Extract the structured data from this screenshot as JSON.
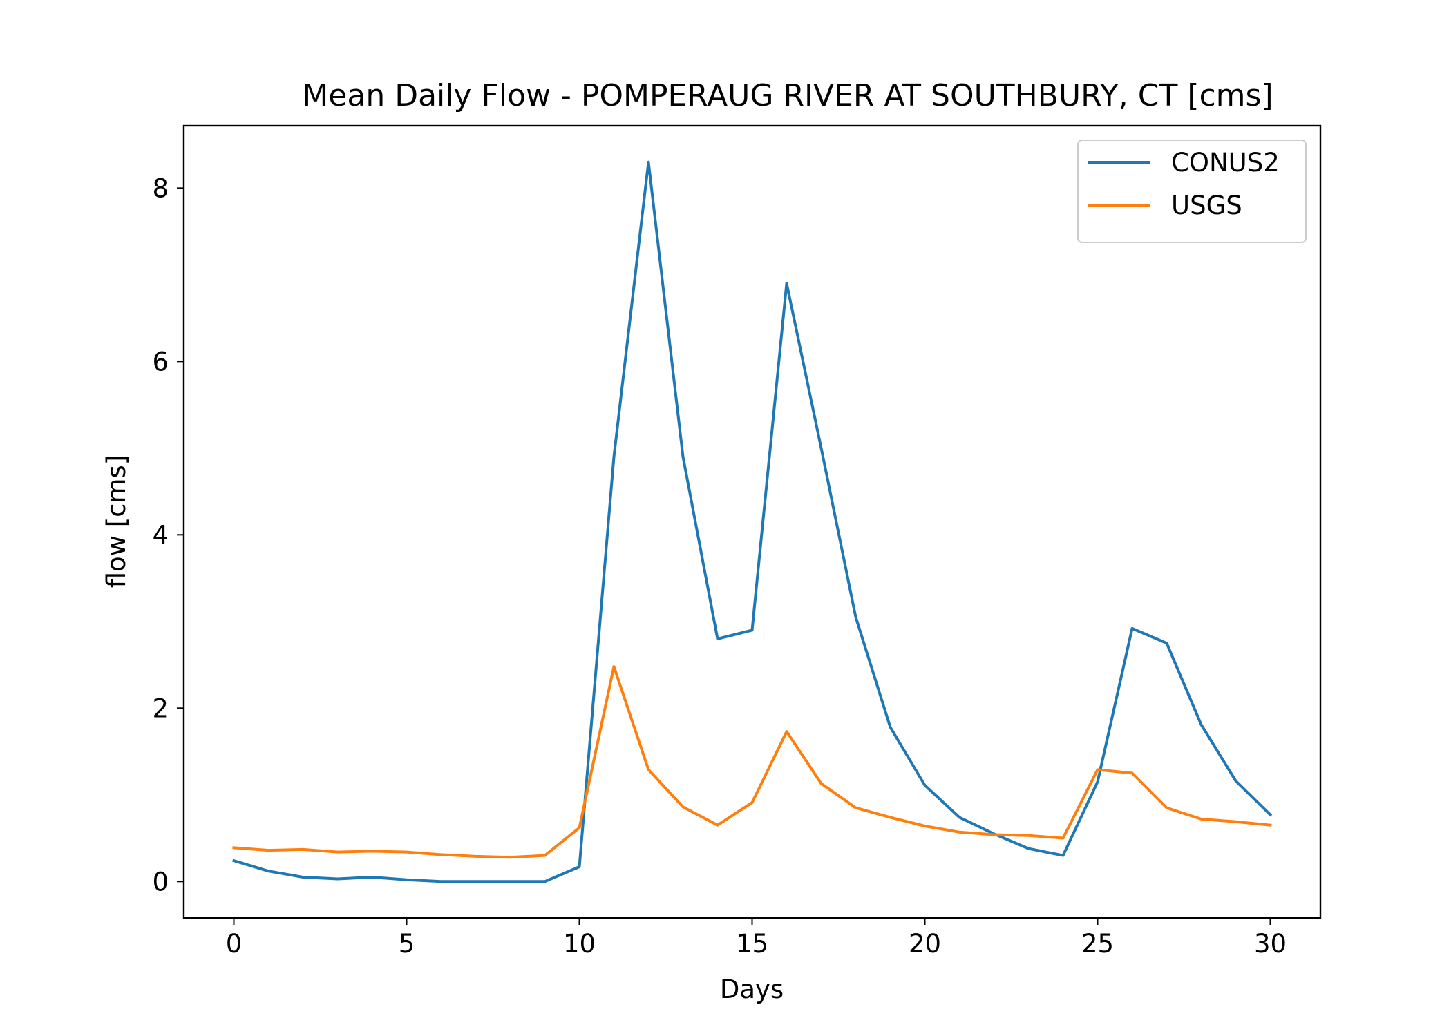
{
  "chart_data": {
    "type": "line",
    "title": "Mean Daily Flow - POMPERAUG RIVER AT SOUTHBURY, CT [cms]",
    "xlabel": "Days",
    "ylabel": "flow [cms]",
    "xlim": [
      -1.45,
      31.45
    ],
    "ylim": [
      -0.42,
      8.72
    ],
    "xticks": [
      0,
      5,
      10,
      15,
      20,
      25,
      30
    ],
    "yticks": [
      0,
      2,
      4,
      6,
      8
    ],
    "grid": false,
    "legend_position": "top-right",
    "x": [
      0,
      1,
      2,
      3,
      4,
      5,
      6,
      7,
      8,
      9,
      10,
      11,
      12,
      13,
      14,
      15,
      16,
      17,
      18,
      19,
      20,
      21,
      22,
      23,
      24,
      25,
      26,
      27,
      28,
      29,
      30
    ],
    "series": [
      {
        "name": "CONUS2",
        "color": "#1f77b4",
        "values": [
          0.24,
          0.12,
          0.05,
          0.03,
          0.05,
          0.02,
          0.0,
          0.0,
          0.0,
          0.0,
          0.17,
          4.9,
          8.3,
          4.9,
          2.8,
          2.9,
          6.9,
          5.0,
          3.05,
          1.78,
          1.11,
          0.74,
          0.55,
          0.38,
          0.3,
          1.15,
          2.92,
          2.75,
          1.81,
          1.16,
          0.77
        ]
      },
      {
        "name": "USGS",
        "color": "#ff7f0e",
        "values": [
          0.39,
          0.36,
          0.37,
          0.34,
          0.35,
          0.34,
          0.31,
          0.29,
          0.28,
          0.3,
          0.62,
          2.48,
          1.29,
          0.86,
          0.65,
          0.91,
          1.73,
          1.13,
          0.85,
          0.74,
          0.64,
          0.57,
          0.54,
          0.53,
          0.5,
          1.29,
          1.25,
          0.85,
          0.72,
          0.69,
          0.65
        ]
      }
    ]
  }
}
